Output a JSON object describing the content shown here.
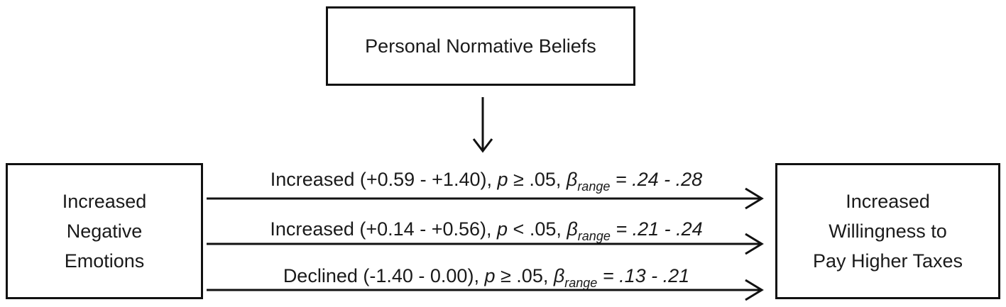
{
  "boxes": {
    "top": {
      "lines": [
        "Personal Normative Beliefs"
      ]
    },
    "left": {
      "lines": [
        "Increased",
        "Negative",
        "Emotions"
      ]
    },
    "right": {
      "lines": [
        "Increased",
        "Willingness to",
        "Pay Higher Taxes"
      ]
    }
  },
  "paths": [
    {
      "prefix": "Increased (+0.59 - +1.40), ",
      "p": "p",
      "p_rest": " ≥ .05, ",
      "beta": "β",
      "beta_sub": "range",
      "beta_rest": " = .24 - .28"
    },
    {
      "prefix": "Increased (+0.14 - +0.56), ",
      "p": "p",
      "p_rest": " < .05, ",
      "beta": "β",
      "beta_sub": "range",
      "beta_rest": " = .21 - .24"
    },
    {
      "prefix": "Declined (-1.40 - 0.00), ",
      "p": "p",
      "p_rest": " ≥ .05, ",
      "beta": "β",
      "beta_sub": "range",
      "beta_rest": " = .13 - .21"
    }
  ],
  "colors": {
    "stroke": "#111111",
    "text": "#1a1a1a"
  }
}
